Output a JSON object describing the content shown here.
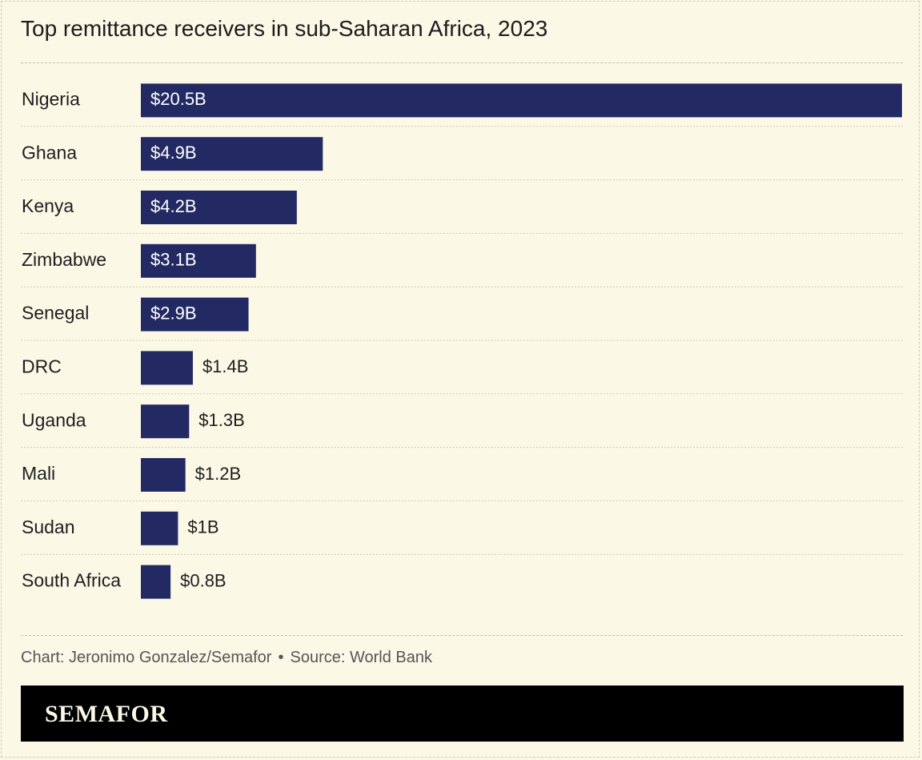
{
  "title": "Top remittance receivers in sub-Saharan Africa, 2023",
  "credit": {
    "chart": "Chart: Jeronimo Gonzalez/Semafor",
    "separator": "•",
    "source": "Source: World Bank"
  },
  "brand": "SEMAFOR",
  "colors": {
    "bar": "#232a63",
    "background": "#fbf8e6",
    "label_inside": "#ffffff",
    "label_outside": "#1e1e1e"
  },
  "chart_data": {
    "type": "bar",
    "orientation": "horizontal",
    "categories": [
      "Nigeria",
      "Ghana",
      "Kenya",
      "Zimbabwe",
      "Senegal",
      "DRC",
      "Uganda",
      "Mali",
      "Sudan",
      "South Africa"
    ],
    "values": [
      20.5,
      4.9,
      4.2,
      3.1,
      2.9,
      1.4,
      1.3,
      1.2,
      1.0,
      0.8
    ],
    "value_labels": [
      "$20.5B",
      "$4.9B",
      "$4.2B",
      "$3.1B",
      "$2.9B",
      "$1.4B",
      "$1.3B",
      "$1.2B",
      "$1B",
      "$0.8B"
    ],
    "unit": "USD billions",
    "xlim": [
      0,
      20.5
    ],
    "grid": false,
    "legend": "none"
  }
}
